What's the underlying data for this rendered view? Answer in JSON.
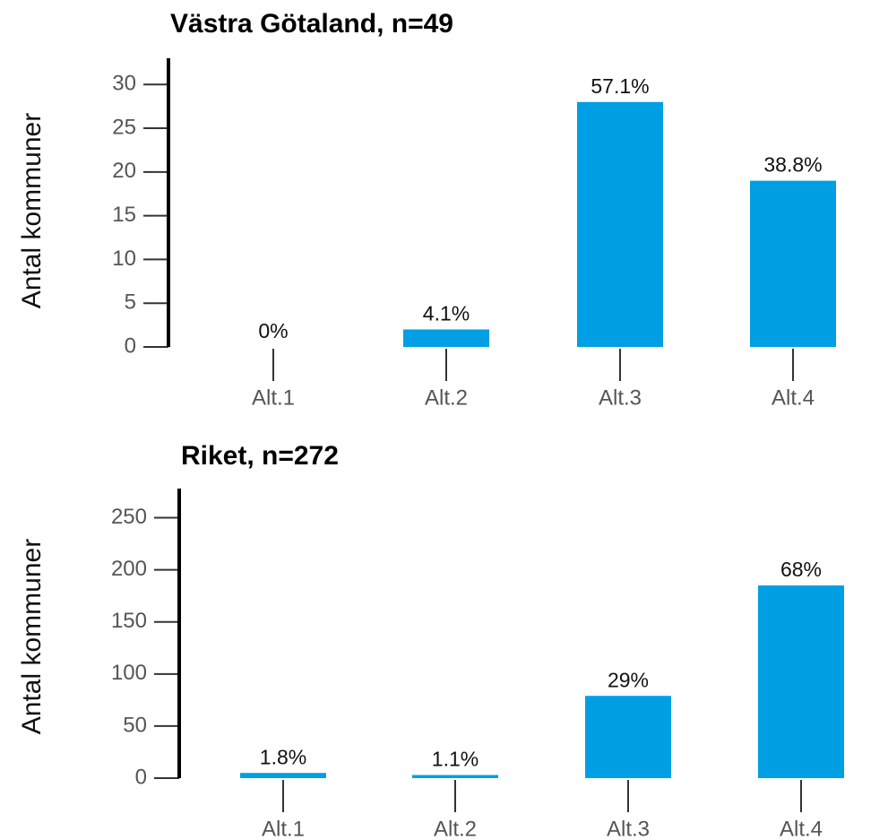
{
  "chart_data": [
    {
      "type": "bar",
      "title": "Västra Götaland, n=49",
      "y_label": "Antal kommuner",
      "categories": [
        "Alt.1",
        "Alt.2",
        "Alt.3",
        "Alt.4"
      ],
      "values": [
        0,
        2,
        28,
        19
      ],
      "value_labels": [
        "0%",
        "4.1%",
        "57.1%",
        "38.8%"
      ],
      "color": "#009fe3",
      "ylim": [
        0,
        33
      ],
      "yticks": [
        0,
        5,
        10,
        15,
        20,
        25,
        30
      ]
    },
    {
      "type": "bar",
      "title": "Riket, n=272",
      "y_label": "Antal kommuner",
      "categories": [
        "Alt.1",
        "Alt.2",
        "Alt.3",
        "Alt.4"
      ],
      "values": [
        5,
        3,
        79,
        185
      ],
      "value_labels": [
        "1.8%",
        "1.1%",
        "29%",
        "68%"
      ],
      "color": "#009fe3",
      "ylim": [
        0,
        278
      ],
      "yticks": [
        0,
        50,
        100,
        150,
        200,
        250
      ]
    }
  ]
}
